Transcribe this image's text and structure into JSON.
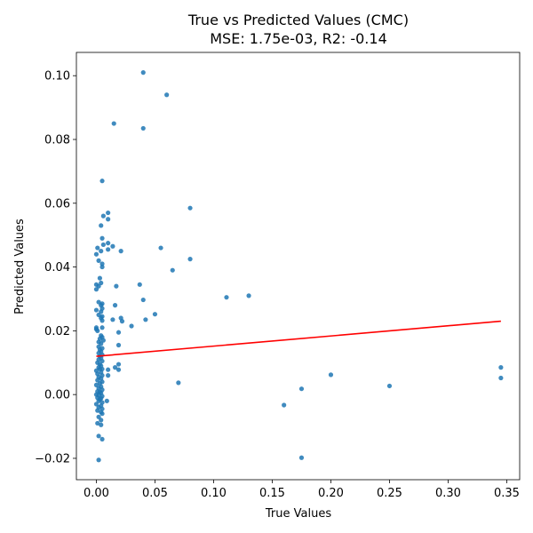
{
  "chart_data": {
    "type": "scatter",
    "title": "True vs Predicted Values (CMC)",
    "subtitle": "MSE: 1.75e-03, R2: -0.14",
    "xlabel": "True Values",
    "ylabel": "Predicted Values",
    "xlim": [
      -0.017,
      0.361
    ],
    "ylim": [
      -0.0267,
      0.1073
    ],
    "x_ticks": [
      0.0,
      0.05,
      0.1,
      0.15,
      0.2,
      0.25,
      0.3,
      0.35
    ],
    "x_tick_labels": [
      "0.00",
      "0.05",
      "0.10",
      "0.15",
      "0.20",
      "0.25",
      "0.30",
      "0.35"
    ],
    "y_ticks": [
      -0.02,
      0.0,
      0.02,
      0.04,
      0.06,
      0.08,
      0.1
    ],
    "y_tick_labels": [
      "−0.02",
      "0.00",
      "0.02",
      "0.04",
      "0.06",
      "0.08",
      "0.10"
    ],
    "grid": false,
    "point_color": "#1f77b4",
    "fit_line_color": "#ff0000",
    "fit_line": {
      "x": [
        0.0,
        0.345
      ],
      "y": [
        0.012,
        0.023
      ]
    },
    "points": [
      [
        0.04,
        0.101
      ],
      [
        0.06,
        0.094
      ],
      [
        0.015,
        0.085
      ],
      [
        0.04,
        0.0835
      ],
      [
        0.005,
        0.067
      ],
      [
        0.08,
        0.0585
      ],
      [
        0.01,
        0.057
      ],
      [
        0.006,
        0.056
      ],
      [
        0.01,
        0.055
      ],
      [
        0.004,
        0.053
      ],
      [
        0.005,
        0.049
      ],
      [
        0.01,
        0.0475
      ],
      [
        0.006,
        0.047
      ],
      [
        0.014,
        0.0465
      ],
      [
        0.001,
        0.046
      ],
      [
        0.055,
        0.046
      ],
      [
        0.004,
        0.045
      ],
      [
        0.01,
        0.0455
      ],
      [
        0.021,
        0.045
      ],
      [
        0.0,
        0.044
      ],
      [
        0.08,
        0.0425
      ],
      [
        0.002,
        0.042
      ],
      [
        0.005,
        0.041
      ],
      [
        0.005,
        0.04
      ],
      [
        0.065,
        0.039
      ],
      [
        0.003,
        0.0365
      ],
      [
        0.004,
        0.035
      ],
      [
        0.0,
        0.0345
      ],
      [
        0.002,
        0.034
      ],
      [
        0.037,
        0.0345
      ],
      [
        0.017,
        0.034
      ],
      [
        0.0,
        0.033
      ],
      [
        0.111,
        0.0305
      ],
      [
        0.13,
        0.031
      ],
      [
        0.002,
        0.029
      ],
      [
        0.04,
        0.0297
      ],
      [
        0.005,
        0.0285
      ],
      [
        0.004,
        0.028
      ],
      [
        0.016,
        0.028
      ],
      [
        0.005,
        0.027
      ],
      [
        0.0,
        0.0265
      ],
      [
        0.004,
        0.026
      ],
      [
        0.002,
        0.025
      ],
      [
        0.05,
        0.0252
      ],
      [
        0.005,
        0.0245
      ],
      [
        0.004,
        0.024
      ],
      [
        0.021,
        0.024
      ],
      [
        0.042,
        0.0235
      ],
      [
        0.014,
        0.0235
      ],
      [
        0.005,
        0.0232
      ],
      [
        0.022,
        0.023
      ],
      [
        0.03,
        0.0215
      ],
      [
        0.005,
        0.021
      ],
      [
        0.0,
        0.021
      ],
      [
        0.001,
        0.02
      ],
      [
        0.0,
        0.0205
      ],
      [
        0.019,
        0.0195
      ],
      [
        0.004,
        0.0185
      ],
      [
        0.005,
        0.018
      ],
      [
        0.003,
        0.0175
      ],
      [
        0.006,
        0.017
      ],
      [
        0.002,
        0.0165
      ],
      [
        0.004,
        0.016
      ],
      [
        0.019,
        0.0155
      ],
      [
        0.002,
        0.015
      ],
      [
        0.005,
        0.0145
      ],
      [
        0.003,
        0.014
      ],
      [
        0.004,
        0.0135
      ],
      [
        0.002,
        0.013
      ],
      [
        0.005,
        0.0125
      ],
      [
        0.003,
        0.012
      ],
      [
        0.004,
        0.0115
      ],
      [
        0.002,
        0.011
      ],
      [
        0.005,
        0.0105
      ],
      [
        0.001,
        0.01
      ],
      [
        0.003,
        0.0095
      ],
      [
        0.019,
        0.0095
      ],
      [
        0.004,
        0.009
      ],
      [
        0.002,
        0.0085
      ],
      [
        0.016,
        0.0085
      ],
      [
        0.005,
        0.008
      ],
      [
        0.0,
        0.0075
      ],
      [
        0.003,
        0.008
      ],
      [
        0.01,
        0.0078
      ],
      [
        0.019,
        0.0078
      ],
      [
        0.004,
        0.007
      ],
      [
        0.001,
        0.0065
      ],
      [
        0.005,
        0.006
      ],
      [
        0.01,
        0.006
      ],
      [
        0.002,
        0.0055
      ],
      [
        0.004,
        0.005
      ],
      [
        0.001,
        0.0045
      ],
      [
        0.005,
        0.004
      ],
      [
        0.003,
        0.0035
      ],
      [
        0.07,
        0.0037
      ],
      [
        0.0,
        0.003
      ],
      [
        0.004,
        0.0025
      ],
      [
        0.002,
        0.002
      ],
      [
        0.005,
        0.0015
      ],
      [
        0.001,
        0.001
      ],
      [
        0.003,
        0.0008
      ],
      [
        0.004,
        0.0005
      ],
      [
        0.0,
        0.0
      ],
      [
        0.002,
        -0.0002
      ],
      [
        0.005,
        -0.0005
      ],
      [
        0.001,
        -0.001
      ],
      [
        0.004,
        -0.0012
      ],
      [
        0.003,
        -0.0015
      ],
      [
        0.009,
        -0.002
      ],
      [
        0.002,
        -0.002
      ],
      [
        0.005,
        -0.0025
      ],
      [
        0.0,
        -0.003
      ],
      [
        0.004,
        -0.0035
      ],
      [
        0.002,
        -0.004
      ],
      [
        0.005,
        -0.0045
      ],
      [
        0.001,
        -0.005
      ],
      [
        0.004,
        -0.0055
      ],
      [
        0.005,
        -0.006
      ],
      [
        0.002,
        -0.007
      ],
      [
        0.004,
        -0.008
      ],
      [
        0.001,
        -0.009
      ],
      [
        0.004,
        -0.0095
      ],
      [
        0.002,
        -0.013
      ],
      [
        0.005,
        -0.014
      ],
      [
        0.002,
        -0.0205
      ],
      [
        0.16,
        -0.0033
      ],
      [
        0.175,
        0.0018
      ],
      [
        0.2,
        0.0062
      ],
      [
        0.25,
        0.0027
      ],
      [
        0.345,
        0.0085
      ],
      [
        0.345,
        0.0052
      ],
      [
        0.175,
        -0.0198
      ]
    ]
  }
}
